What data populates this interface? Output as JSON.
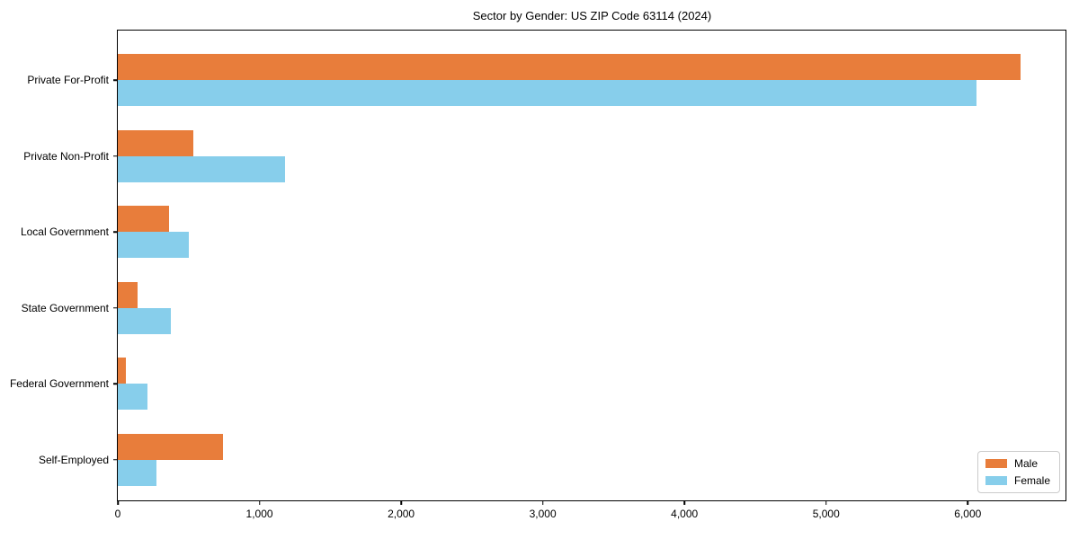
{
  "chart_data": {
    "type": "bar",
    "orientation": "horizontal",
    "title": "Sector by Gender: US ZIP Code 63114 (2024)",
    "xlabel": "",
    "ylabel": "",
    "grid": false,
    "categories": [
      "Private For-Profit",
      "Private Non-Profit",
      "Local Government",
      "State Government",
      "Federal Government",
      "Self-Employed"
    ],
    "series": [
      {
        "name": "Male",
        "color": "#e87d3b",
        "values": [
          6370,
          530,
          360,
          140,
          55,
          745
        ]
      },
      {
        "name": "Female",
        "color": "#87ceeb",
        "values": [
          6060,
          1180,
          500,
          375,
          210,
          275
        ]
      }
    ],
    "xlim": [
      0,
      6690
    ],
    "x_ticks": [
      {
        "value": 0,
        "label": "0"
      },
      {
        "value": 1000,
        "label": "1,000"
      },
      {
        "value": 2000,
        "label": "2,000"
      },
      {
        "value": 3000,
        "label": "3,000"
      },
      {
        "value": 4000,
        "label": "4,000"
      },
      {
        "value": 5000,
        "label": "5,000"
      },
      {
        "value": 6000,
        "label": "6,000"
      }
    ],
    "legend": {
      "position": "lower right"
    }
  }
}
